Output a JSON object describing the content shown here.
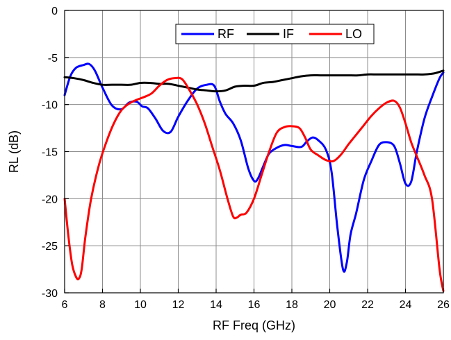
{
  "chart_data": {
    "type": "line",
    "title": "",
    "xlabel": "RF Freq (GHz)",
    "ylabel": "RL (dB)",
    "xlim": [
      6,
      26
    ],
    "ylim": [
      -30,
      0
    ],
    "xticks": [
      6,
      8,
      10,
      12,
      14,
      16,
      18,
      20,
      22,
      24,
      26
    ],
    "yticks": [
      0,
      -5,
      -10,
      -15,
      -20,
      -25,
      -30
    ],
    "grid": true,
    "legend_position": "top-right",
    "series": [
      {
        "name": "RF",
        "color": "#0000ff",
        "x": [
          6.0,
          6.3,
          6.6,
          7.0,
          7.3,
          7.6,
          8.0,
          8.5,
          9.0,
          9.4,
          9.8,
          10.1,
          10.4,
          10.8,
          11.2,
          11.6,
          12.0,
          12.5,
          13.0,
          13.5,
          13.9,
          14.2,
          14.5,
          14.9,
          15.3,
          15.7,
          16.0,
          16.2,
          16.5,
          16.8,
          17.2,
          17.6,
          18.0,
          18.5,
          18.8,
          19.1,
          19.4,
          19.8,
          20.1,
          20.4,
          20.7,
          20.9,
          21.1,
          21.4,
          21.8,
          22.2,
          22.6,
          23.0,
          23.4,
          23.7,
          24.0,
          24.3,
          24.6,
          25.0,
          25.4,
          25.8,
          26.0
        ],
        "y": [
          -9.0,
          -7.0,
          -6.1,
          -5.8,
          -5.7,
          -6.4,
          -8.2,
          -10.1,
          -10.5,
          -9.8,
          -9.7,
          -10.2,
          -10.4,
          -11.5,
          -12.8,
          -12.9,
          -11.3,
          -9.6,
          -8.3,
          -7.9,
          -8.0,
          -9.7,
          -11.0,
          -12.0,
          -13.8,
          -16.8,
          -18.1,
          -17.9,
          -16.5,
          -15.2,
          -14.6,
          -14.3,
          -14.4,
          -14.5,
          -13.9,
          -13.5,
          -13.8,
          -14.8,
          -17.2,
          -23.0,
          -27.5,
          -26.8,
          -23.8,
          -21.5,
          -18.0,
          -16.0,
          -14.3,
          -14.0,
          -14.4,
          -16.2,
          -18.4,
          -18.2,
          -15.0,
          -11.5,
          -9.2,
          -7.2,
          -6.6
        ]
      },
      {
        "name": "IF",
        "color": "#000000",
        "x": [
          6.0,
          6.5,
          7.0,
          7.5,
          8.0,
          8.5,
          9.0,
          9.5,
          10.0,
          10.5,
          11.0,
          11.5,
          12.0,
          12.5,
          13.0,
          13.5,
          14.0,
          14.5,
          15.0,
          15.5,
          16.0,
          16.5,
          17.0,
          17.5,
          18.0,
          18.5,
          19.0,
          19.5,
          20.0,
          20.5,
          21.0,
          21.5,
          22.0,
          22.5,
          23.0,
          23.5,
          24.0,
          24.5,
          25.0,
          25.5,
          26.0
        ],
        "y": [
          -7.1,
          -7.2,
          -7.4,
          -7.7,
          -7.9,
          -7.9,
          -7.9,
          -7.9,
          -7.7,
          -7.7,
          -7.8,
          -7.8,
          -8.0,
          -8.2,
          -8.4,
          -8.5,
          -8.6,
          -8.5,
          -8.1,
          -8.0,
          -8.0,
          -7.7,
          -7.6,
          -7.4,
          -7.2,
          -7.0,
          -6.9,
          -6.9,
          -6.9,
          -6.9,
          -6.9,
          -6.9,
          -6.8,
          -6.8,
          -6.8,
          -6.8,
          -6.8,
          -6.8,
          -6.8,
          -6.7,
          -6.4
        ]
      },
      {
        "name": "LO",
        "color": "#ff0000",
        "x": [
          6.0,
          6.2,
          6.4,
          6.6,
          6.75,
          6.9,
          7.1,
          7.4,
          7.8,
          8.2,
          8.6,
          9.0,
          9.4,
          9.8,
          10.2,
          10.6,
          11.0,
          11.4,
          11.8,
          12.2,
          12.6,
          13.0,
          13.4,
          13.8,
          14.2,
          14.6,
          14.9,
          15.1,
          15.3,
          15.6,
          16.0,
          16.4,
          16.8,
          17.2,
          17.6,
          18.0,
          18.4,
          18.7,
          19.0,
          19.4,
          19.8,
          20.2,
          20.6,
          21.0,
          21.4,
          21.8,
          22.2,
          22.6,
          23.0,
          23.4,
          23.7,
          24.0,
          24.3,
          24.6,
          25.0,
          25.4,
          25.8,
          26.0
        ],
        "y": [
          -20.0,
          -24.0,
          -27.0,
          -28.3,
          -28.5,
          -27.5,
          -24.0,
          -20.0,
          -16.5,
          -14.0,
          -12.0,
          -10.6,
          -9.9,
          -9.5,
          -9.2,
          -8.8,
          -8.0,
          -7.4,
          -7.2,
          -7.3,
          -8.5,
          -10.0,
          -12.0,
          -14.5,
          -17.0,
          -20.0,
          -21.9,
          -22.0,
          -21.7,
          -21.5,
          -20.0,
          -17.5,
          -15.0,
          -13.0,
          -12.4,
          -12.3,
          -12.5,
          -13.5,
          -14.8,
          -15.4,
          -15.9,
          -16.0,
          -15.3,
          -14.2,
          -13.2,
          -12.2,
          -11.2,
          -10.4,
          -9.8,
          -9.6,
          -10.3,
          -12.0,
          -14.0,
          -15.5,
          -17.5,
          -20.0,
          -27.5,
          -29.8
        ]
      }
    ]
  }
}
